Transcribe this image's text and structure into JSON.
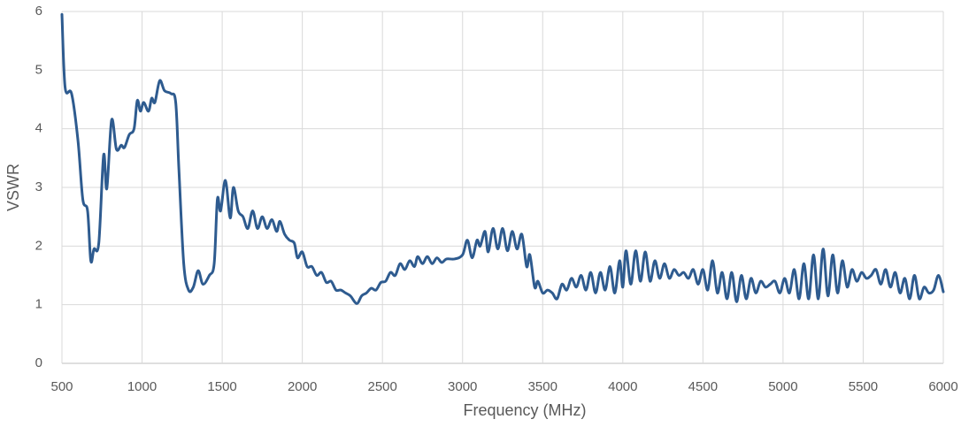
{
  "chart_data": {
    "type": "line",
    "x_label": "Frequency (MHz)",
    "y_label": "VSWR",
    "xlim": [
      500,
      6000
    ],
    "ylim": [
      0,
      6
    ],
    "xticks": [
      500,
      1000,
      1500,
      2000,
      2500,
      3000,
      3500,
      4000,
      4500,
      5000,
      5500,
      6000
    ],
    "yticks": [
      0,
      1,
      2,
      3,
      4,
      5,
      6
    ],
    "grid": true,
    "x": [
      500,
      520,
      560,
      600,
      630,
      660,
      680,
      700,
      730,
      760,
      780,
      810,
      840,
      870,
      890,
      920,
      950,
      970,
      990,
      1010,
      1040,
      1060,
      1080,
      1110,
      1140,
      1180,
      1210,
      1230,
      1260,
      1290,
      1320,
      1350,
      1380,
      1420,
      1450,
      1470,
      1490,
      1520,
      1550,
      1570,
      1600,
      1630,
      1660,
      1690,
      1720,
      1750,
      1780,
      1810,
      1840,
      1860,
      1890,
      1920,
      1950,
      1970,
      2000,
      2030,
      2060,
      2090,
      2120,
      2150,
      2180,
      2210,
      2240,
      2270,
      2300,
      2340,
      2370,
      2400,
      2430,
      2460,
      2490,
      2520,
      2550,
      2580,
      2610,
      2640,
      2670,
      2700,
      2720,
      2750,
      2780,
      2810,
      2840,
      2870,
      2900,
      2950,
      3000,
      3030,
      3060,
      3090,
      3110,
      3140,
      3160,
      3190,
      3220,
      3250,
      3280,
      3310,
      3340,
      3370,
      3400,
      3420,
      3450,
      3470,
      3500,
      3530,
      3560,
      3590,
      3620,
      3650,
      3680,
      3710,
      3740,
      3770,
      3800,
      3830,
      3860,
      3890,
      3920,
      3950,
      3980,
      4000,
      4020,
      4050,
      4080,
      4110,
      4140,
      4170,
      4200,
      4230,
      4260,
      4290,
      4320,
      4350,
      4380,
      4410,
      4440,
      4470,
      4500,
      4530,
      4560,
      4590,
      4620,
      4650,
      4680,
      4710,
      4740,
      4770,
      4800,
      4830,
      4860,
      4890,
      4920,
      4950,
      4980,
      5010,
      5040,
      5070,
      5100,
      5130,
      5160,
      5190,
      5220,
      5250,
      5280,
      5310,
      5340,
      5370,
      5400,
      5430,
      5460,
      5490,
      5520,
      5550,
      5580,
      5610,
      5640,
      5670,
      5700,
      5730,
      5760,
      5790,
      5820,
      5850,
      5880,
      5910,
      5940,
      5970,
      6000
    ],
    "series": [
      {
        "name": "VSWR",
        "color": "#2e5b8f",
        "values": [
          5.95,
          4.7,
          4.6,
          3.8,
          2.8,
          2.6,
          1.75,
          1.95,
          2.05,
          3.55,
          2.98,
          4.15,
          3.65,
          3.72,
          3.68,
          3.9,
          4.0,
          4.48,
          4.3,
          4.45,
          4.3,
          4.52,
          4.45,
          4.82,
          4.65,
          4.6,
          4.45,
          3.3,
          1.7,
          1.25,
          1.3,
          1.58,
          1.35,
          1.5,
          1.7,
          2.8,
          2.6,
          3.12,
          2.48,
          3.0,
          2.6,
          2.5,
          2.3,
          2.6,
          2.3,
          2.5,
          2.3,
          2.45,
          2.25,
          2.42,
          2.2,
          2.1,
          2.05,
          1.8,
          1.9,
          1.65,
          1.65,
          1.5,
          1.55,
          1.38,
          1.4,
          1.25,
          1.25,
          1.2,
          1.15,
          1.02,
          1.15,
          1.2,
          1.28,
          1.25,
          1.38,
          1.4,
          1.55,
          1.5,
          1.7,
          1.6,
          1.75,
          1.65,
          1.82,
          1.7,
          1.82,
          1.7,
          1.8,
          1.72,
          1.78,
          1.78,
          1.85,
          2.1,
          1.8,
          2.1,
          2.0,
          2.25,
          1.9,
          2.3,
          1.95,
          2.3,
          1.92,
          2.25,
          1.95,
          2.2,
          1.65,
          1.85,
          1.3,
          1.4,
          1.2,
          1.25,
          1.2,
          1.1,
          1.35,
          1.25,
          1.45,
          1.3,
          1.5,
          1.25,
          1.55,
          1.2,
          1.55,
          1.25,
          1.65,
          1.2,
          1.75,
          1.3,
          1.92,
          1.35,
          1.92,
          1.4,
          1.9,
          1.4,
          1.75,
          1.45,
          1.7,
          1.45,
          1.6,
          1.5,
          1.55,
          1.45,
          1.6,
          1.35,
          1.6,
          1.25,
          1.75,
          1.2,
          1.55,
          1.1,
          1.55,
          1.05,
          1.5,
          1.1,
          1.45,
          1.2,
          1.4,
          1.3,
          1.35,
          1.4,
          1.2,
          1.45,
          1.2,
          1.6,
          1.1,
          1.7,
          1.1,
          1.85,
          1.1,
          1.95,
          1.15,
          1.85,
          1.2,
          1.75,
          1.3,
          1.6,
          1.4,
          1.55,
          1.45,
          1.5,
          1.6,
          1.35,
          1.6,
          1.3,
          1.55,
          1.2,
          1.45,
          1.1,
          1.5,
          1.1,
          1.3,
          1.2,
          1.25,
          1.5,
          1.22
        ]
      }
    ]
  }
}
